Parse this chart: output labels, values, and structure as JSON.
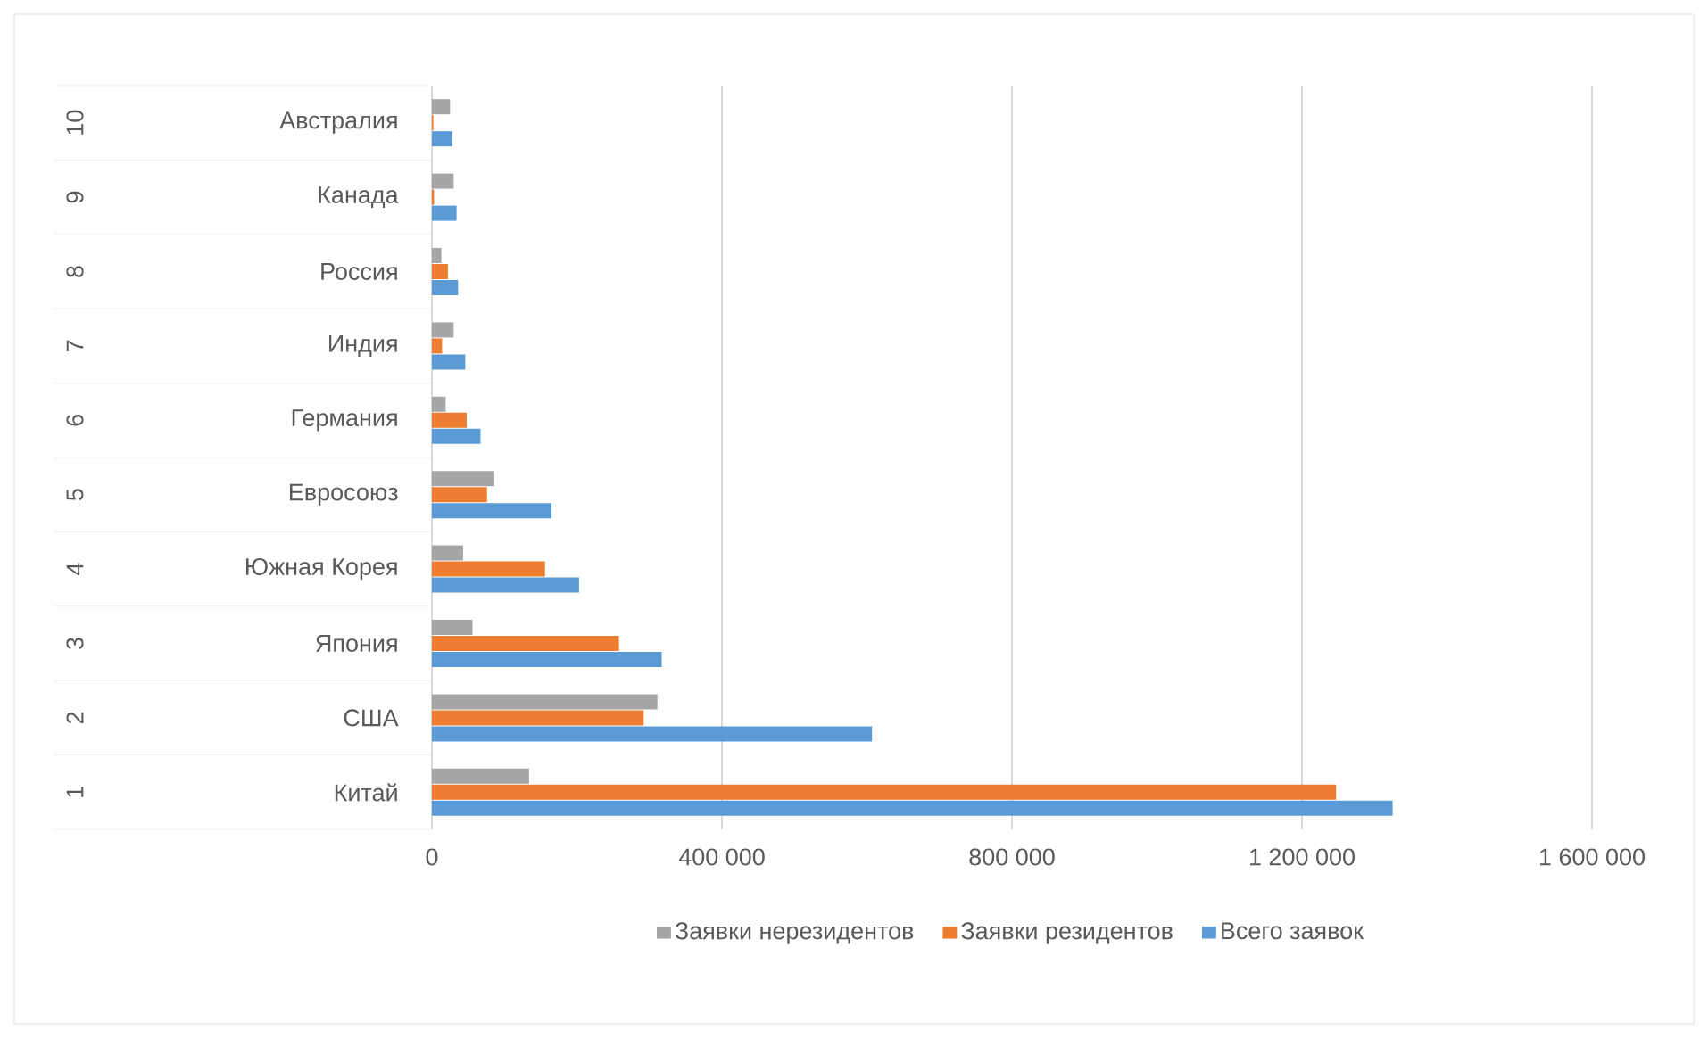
{
  "chart_data": {
    "type": "bar",
    "orientation": "horizontal",
    "categories": [
      "Австралия",
      "Канада",
      "Россия",
      "Индия",
      "Германия",
      "Евросоюз",
      "Южная Корея",
      "Япония",
      "США",
      "Китай"
    ],
    "annotations": [
      "10",
      "9",
      "8",
      "7",
      "6",
      "5",
      "4",
      "3",
      "2",
      "1"
    ],
    "series": [
      {
        "name": "Заявки нерезидентов",
        "color": "#a5a5a5",
        "values": [
          25000,
          30000,
          13000,
          30000,
          19000,
          86000,
          43000,
          56000,
          311000,
          134000
        ]
      },
      {
        "name": "Заявки резидентов",
        "color": "#ed7d31",
        "values": [
          2000,
          3000,
          22000,
          14000,
          48000,
          76000,
          156000,
          258000,
          292000,
          1247000
        ]
      },
      {
        "name": "Всего заявок",
        "color": "#5b9bd5",
        "values": [
          28000,
          34000,
          36000,
          46000,
          67000,
          165000,
          203000,
          317000,
          607000,
          1325000
        ]
      }
    ],
    "xlim": [
      0,
      1600000
    ],
    "xticks": [
      0,
      {
        "value": 400000,
        "label": "400 000"
      },
      {
        "value": 800000,
        "label": "800 000"
      },
      {
        "value": 1200000,
        "label": "1 200 000"
      },
      {
        "value": 1600000,
        "label": "1 600 000"
      }
    ],
    "grid": "x",
    "legend": "bottom"
  }
}
